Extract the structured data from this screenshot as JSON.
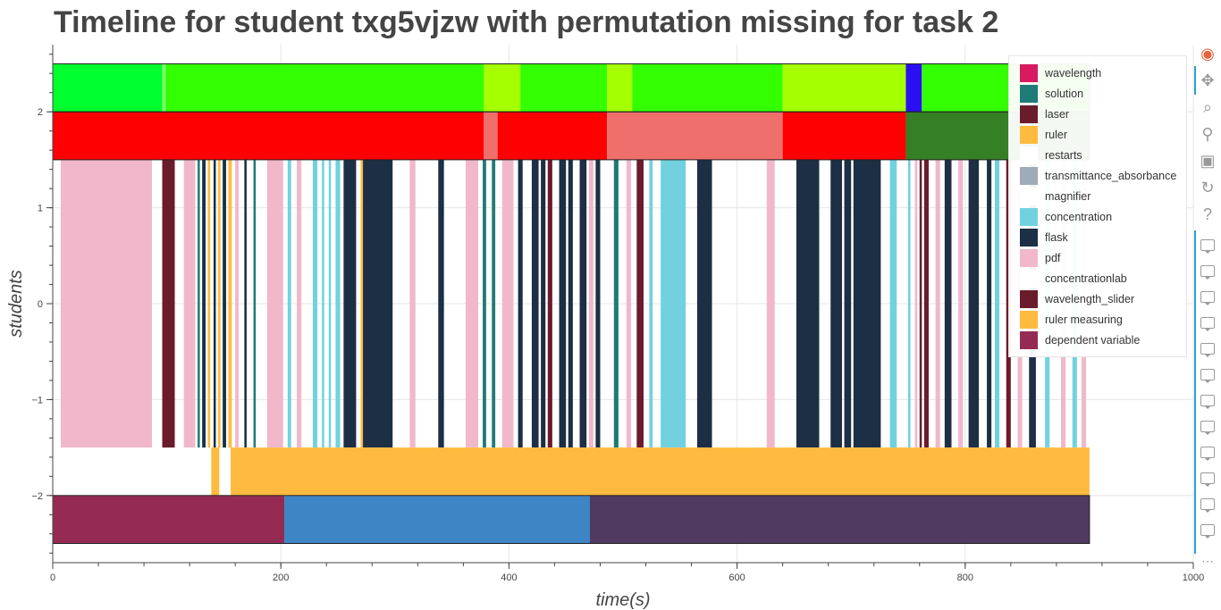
{
  "chart_data": {
    "type": "timeline",
    "title": "Timeline for student txg5vjzw with permutation missing for task 2",
    "xlabel": "time(s)",
    "ylabel": "students",
    "xlim": [
      0,
      1000
    ],
    "ylim": [
      -2.7,
      2.7
    ],
    "x_ticks": [
      "0",
      "200",
      "400",
      "600",
      "800",
      "1000"
    ],
    "x_tick_values": [
      0,
      200,
      400,
      600,
      800,
      1000
    ],
    "y_ticks": [
      "2",
      "1",
      "0",
      "−1",
      "−2"
    ],
    "y_tick_values": [
      2,
      1,
      0,
      -1,
      -2
    ],
    "grid": true,
    "legend_position": "top-right",
    "legend": [
      {
        "name": "wavelength",
        "color": "#d81b60"
      },
      {
        "name": "solution",
        "color": "#1e7b75"
      },
      {
        "name": "laser",
        "color": "#6b1c2c"
      },
      {
        "name": "ruler",
        "color": "#ffbb3f"
      },
      {
        "name": "restarts",
        "color": "#ffffff"
      },
      {
        "name": "transmittance_absorbance",
        "color": "#9eabb8"
      },
      {
        "name": "magnifier",
        "color": "#ffffff"
      },
      {
        "name": "concentration",
        "color": "#72d1df"
      },
      {
        "name": "flask",
        "color": "#1c2f44"
      },
      {
        "name": "pdf",
        "color": "#f0b8ca"
      },
      {
        "name": "concentrationlab",
        "color": "#ffffff"
      },
      {
        "name": "wavelength_slider",
        "color": "#6b1c2c"
      },
      {
        "name": "ruler measuring",
        "color": "#ffbb3f"
      },
      {
        "name": "dependent variable",
        "color": "#952b52"
      }
    ],
    "rows": [
      {
        "y0": 2,
        "y1": 2.5,
        "segments": [
          {
            "x0": 0,
            "x1": 96,
            "color": "#00ff2e"
          },
          {
            "x0": 96,
            "x1": 99,
            "color": "#7cff6b"
          },
          {
            "x0": 99,
            "x1": 378,
            "color": "#33ff00"
          },
          {
            "x0": 378,
            "x1": 410,
            "color": "#a6ff00"
          },
          {
            "x0": 410,
            "x1": 486,
            "color": "#33ff00"
          },
          {
            "x0": 486,
            "x1": 508,
            "color": "#a6ff00"
          },
          {
            "x0": 508,
            "x1": 640,
            "color": "#33ff00"
          },
          {
            "x0": 640,
            "x1": 748,
            "color": "#a6ff00"
          },
          {
            "x0": 748,
            "x1": 762,
            "color": "#2a0ff5"
          },
          {
            "x0": 762,
            "x1": 909,
            "color": "#33ff00"
          }
        ]
      },
      {
        "y0": 1.5,
        "y1": 2,
        "segments": [
          {
            "x0": 0,
            "x1": 378,
            "color": "#ff0000"
          },
          {
            "x0": 378,
            "x1": 390,
            "color": "#ef6f6c"
          },
          {
            "x0": 390,
            "x1": 486,
            "color": "#ff0000"
          },
          {
            "x0": 486,
            "x1": 640,
            "color": "#ef6f6c"
          },
          {
            "x0": 640,
            "x1": 748,
            "color": "#ff0000"
          },
          {
            "x0": 748,
            "x1": 909,
            "color": "#357f24"
          }
        ]
      },
      {
        "y0": -1.5,
        "y1": 1.5,
        "segments": [
          {
            "x0": 7,
            "x1": 87,
            "color": "#f0b8ca"
          },
          {
            "x0": 96,
            "x1": 107,
            "color": "#6b1c2c"
          },
          {
            "x0": 115,
            "x1": 125,
            "color": "#f0b8ca"
          },
          {
            "x0": 127,
            "x1": 129,
            "color": "#1e7b75"
          },
          {
            "x0": 131,
            "x1": 134,
            "color": "#1c2f44"
          },
          {
            "x0": 136,
            "x1": 138,
            "color": "#ffbb3f"
          },
          {
            "x0": 141,
            "x1": 143,
            "color": "#1c2f44"
          },
          {
            "x0": 145,
            "x1": 147,
            "color": "#ffbb3f"
          },
          {
            "x0": 149,
            "x1": 152,
            "color": "#1c2f44"
          },
          {
            "x0": 154,
            "x1": 157,
            "color": "#ffbb3f"
          },
          {
            "x0": 160,
            "x1": 163,
            "color": "#f0b8ca"
          },
          {
            "x0": 168,
            "x1": 170,
            "color": "#1c2f44"
          },
          {
            "x0": 176,
            "x1": 178,
            "color": "#1e7b75"
          },
          {
            "x0": 188,
            "x1": 202,
            "color": "#f0b8ca"
          },
          {
            "x0": 206,
            "x1": 209,
            "color": "#72d1df"
          },
          {
            "x0": 214,
            "x1": 218,
            "color": "#f0b8ca"
          },
          {
            "x0": 228,
            "x1": 232,
            "color": "#72d1df"
          },
          {
            "x0": 236,
            "x1": 238,
            "color": "#72d1df"
          },
          {
            "x0": 242,
            "x1": 244,
            "color": "#72d1df"
          },
          {
            "x0": 248,
            "x1": 252,
            "color": "#72d1df"
          },
          {
            "x0": 255,
            "x1": 266,
            "color": "#1c2f44"
          },
          {
            "x0": 270,
            "x1": 272,
            "color": "#ffbb3f"
          },
          {
            "x0": 272,
            "x1": 298,
            "color": "#1c2f44"
          },
          {
            "x0": 313,
            "x1": 318,
            "color": "#f0b8ca"
          },
          {
            "x0": 338,
            "x1": 343,
            "color": "#1c2f44"
          },
          {
            "x0": 362,
            "x1": 373,
            "color": "#f0b8ca"
          },
          {
            "x0": 377,
            "x1": 380,
            "color": "#1e7b75"
          },
          {
            "x0": 385,
            "x1": 388,
            "color": "#1e7b75"
          },
          {
            "x0": 394,
            "x1": 404,
            "color": "#f0b8ca"
          },
          {
            "x0": 408,
            "x1": 412,
            "color": "#1c2f44"
          },
          {
            "x0": 420,
            "x1": 426,
            "color": "#1c2f44"
          },
          {
            "x0": 428,
            "x1": 432,
            "color": "#1c2f44"
          },
          {
            "x0": 434,
            "x1": 438,
            "color": "#6b1c2c"
          },
          {
            "x0": 444,
            "x1": 450,
            "color": "#1c2f44"
          },
          {
            "x0": 452,
            "x1": 456,
            "color": "#1c2f44"
          },
          {
            "x0": 462,
            "x1": 468,
            "color": "#1c2f44"
          },
          {
            "x0": 470,
            "x1": 474,
            "color": "#f0b8ca"
          },
          {
            "x0": 476,
            "x1": 480,
            "color": "#1c2f44"
          },
          {
            "x0": 492,
            "x1": 496,
            "color": "#1e7b75"
          },
          {
            "x0": 503,
            "x1": 507,
            "color": "#f0b8ca"
          },
          {
            "x0": 512,
            "x1": 518,
            "color": "#6b1c2c"
          },
          {
            "x0": 523,
            "x1": 526,
            "color": "#72d1df"
          },
          {
            "x0": 533,
            "x1": 555,
            "color": "#72d1df"
          },
          {
            "x0": 565,
            "x1": 578,
            "color": "#1c2f44"
          },
          {
            "x0": 626,
            "x1": 633,
            "color": "#f0b8ca"
          },
          {
            "x0": 652,
            "x1": 672,
            "color": "#1c2f44"
          },
          {
            "x0": 682,
            "x1": 692,
            "color": "#1c2f44"
          },
          {
            "x0": 694,
            "x1": 700,
            "color": "#1c2f44"
          },
          {
            "x0": 702,
            "x1": 726,
            "color": "#1c2f44"
          },
          {
            "x0": 734,
            "x1": 740,
            "color": "#72d1df"
          },
          {
            "x0": 750,
            "x1": 752,
            "color": "#72d1df"
          },
          {
            "x0": 756,
            "x1": 758,
            "color": "#f0b8ca"
          },
          {
            "x0": 760,
            "x1": 762,
            "color": "#6b1c2c"
          },
          {
            "x0": 764,
            "x1": 768,
            "color": "#6b1c2c"
          },
          {
            "x0": 774,
            "x1": 778,
            "color": "#f0b8ca"
          },
          {
            "x0": 782,
            "x1": 788,
            "color": "#1c2f44"
          },
          {
            "x0": 794,
            "x1": 798,
            "color": "#f0b8ca"
          },
          {
            "x0": 803,
            "x1": 812,
            "color": "#1c2f44"
          },
          {
            "x0": 819,
            "x1": 823,
            "color": "#1c2f44"
          },
          {
            "x0": 826,
            "x1": 830,
            "color": "#72d1df"
          },
          {
            "x0": 836,
            "x1": 840,
            "color": "#6b1c2c"
          },
          {
            "x0": 846,
            "x1": 850,
            "color": "#f0b8ca"
          },
          {
            "x0": 856,
            "x1": 862,
            "color": "#1c2f44"
          },
          {
            "x0": 870,
            "x1": 874,
            "color": "#72d1df"
          },
          {
            "x0": 884,
            "x1": 888,
            "color": "#f0b8ca"
          },
          {
            "x0": 894,
            "x1": 898,
            "color": "#72d1df"
          },
          {
            "x0": 902,
            "x1": 906,
            "color": "#f0b8ca"
          }
        ]
      },
      {
        "y0": -2,
        "y1": -1.5,
        "segments": [
          {
            "x0": 139,
            "x1": 146,
            "color": "#ffbb3f"
          },
          {
            "x0": 156,
            "x1": 909,
            "color": "#ffbb3f"
          }
        ]
      },
      {
        "y0": -2.5,
        "y1": -2,
        "segments": [
          {
            "x0": 0,
            "x1": 203,
            "color": "#952b52"
          },
          {
            "x0": 203,
            "x1": 471,
            "color": "#3e85c5"
          },
          {
            "x0": 471,
            "x1": 909,
            "color": "#513a62"
          }
        ]
      }
    ]
  },
  "toolbar": {
    "items": [
      {
        "name": "bokeh-logo",
        "glyph": "◉"
      },
      {
        "name": "pan-tool",
        "glyph": "✥"
      },
      {
        "name": "box-zoom-tool",
        "glyph": "⌕"
      },
      {
        "name": "wheel-zoom-tool",
        "glyph": "⚲"
      },
      {
        "name": "save-tool",
        "glyph": "▣"
      },
      {
        "name": "reset-tool",
        "glyph": "↻"
      },
      {
        "name": "help-tool",
        "glyph": "?"
      }
    ],
    "more": "⋯"
  }
}
